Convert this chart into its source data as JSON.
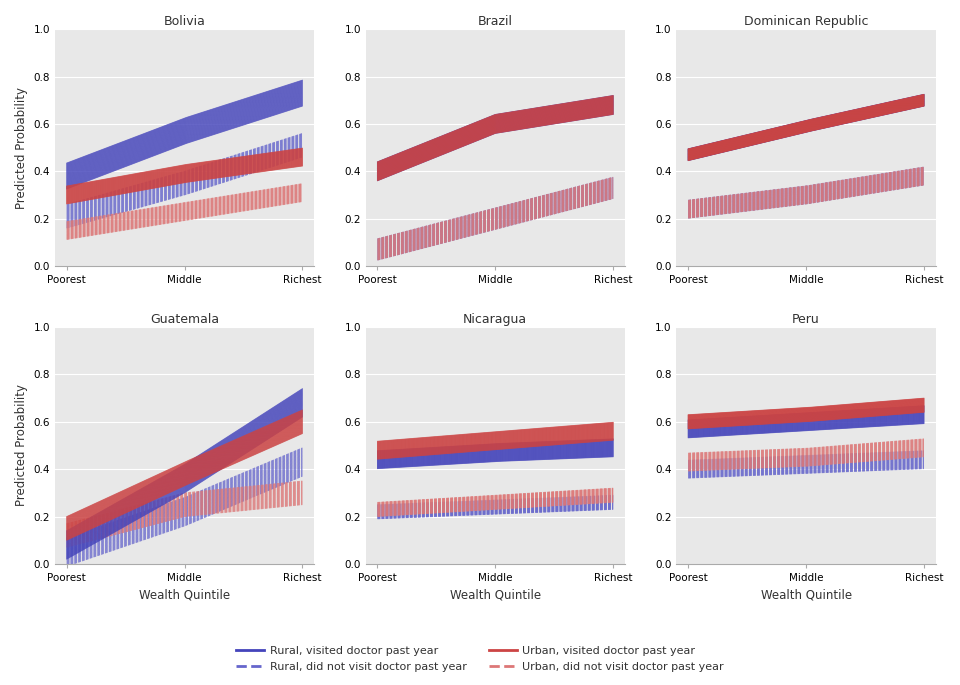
{
  "countries": [
    "Bolivia",
    "Brazil",
    "Dominican Republic",
    "Guatemala",
    "Nicaragua",
    "Peru"
  ],
  "x_ticks": [
    "Poorest",
    "Middle",
    "Richest"
  ],
  "y_ticks": [
    0.0,
    0.2,
    0.4,
    0.6,
    0.8,
    1.0
  ],
  "ylabel": "Predicted Probability",
  "xlabel": "Wealth Quintile",
  "blue_solid": "#4444bb",
  "red_solid": "#cc4444",
  "blue_dashed": "#6666cc",
  "red_dashed": "#dd7777",
  "curves": {
    "Bolivia": {
      "rural_visited": {
        "y": [
          0.38,
          0.57,
          0.73
        ],
        "ci": 0.055
      },
      "rural_not_visited": {
        "y": [
          0.21,
          0.35,
          0.51
        ],
        "ci": 0.05
      },
      "urban_visited": {
        "y": [
          0.3,
          0.39,
          0.46
        ],
        "ci": 0.038
      },
      "urban_not_visited": {
        "y": [
          0.15,
          0.23,
          0.31
        ],
        "ci": 0.038
      }
    },
    "Brazil": {
      "rural_visited": {
        "y": [
          0.4,
          0.6,
          0.68
        ],
        "ci": 0.04
      },
      "rural_not_visited": {
        "y": [
          0.07,
          0.2,
          0.33
        ],
        "ci": 0.045
      },
      "urban_visited": {
        "y": [
          0.4,
          0.6,
          0.68
        ],
        "ci": 0.04
      },
      "urban_not_visited": {
        "y": [
          0.07,
          0.2,
          0.33
        ],
        "ci": 0.045
      }
    },
    "Dominican Republic": {
      "rural_visited": {
        "y": [
          0.47,
          0.59,
          0.7
        ],
        "ci": 0.025
      },
      "rural_not_visited": {
        "y": [
          0.24,
          0.3,
          0.38
        ],
        "ci": 0.038
      },
      "urban_visited": {
        "y": [
          0.47,
          0.59,
          0.7
        ],
        "ci": 0.025
      },
      "urban_not_visited": {
        "y": [
          0.24,
          0.3,
          0.38
        ],
        "ci": 0.038
      }
    },
    "Guatemala": {
      "rural_visited": {
        "y": [
          0.08,
          0.36,
          0.68
        ],
        "ci": 0.06
      },
      "rural_not_visited": {
        "y": [
          0.05,
          0.22,
          0.43
        ],
        "ci": 0.06
      },
      "urban_visited": {
        "y": [
          0.15,
          0.38,
          0.6
        ],
        "ci": 0.05
      },
      "urban_not_visited": {
        "y": [
          0.12,
          0.25,
          0.3
        ],
        "ci": 0.05
      }
    },
    "Nicaragua": {
      "rural_visited": {
        "y": [
          0.44,
          0.47,
          0.49
        ],
        "ci": 0.038
      },
      "rural_not_visited": {
        "y": [
          0.22,
          0.24,
          0.26
        ],
        "ci": 0.03
      },
      "urban_visited": {
        "y": [
          0.48,
          0.52,
          0.56
        ],
        "ci": 0.038
      },
      "urban_not_visited": {
        "y": [
          0.23,
          0.26,
          0.29
        ],
        "ci": 0.03
      }
    },
    "Peru": {
      "rural_visited": {
        "y": [
          0.57,
          0.6,
          0.63
        ],
        "ci": 0.038
      },
      "rural_not_visited": {
        "y": [
          0.4,
          0.42,
          0.44
        ],
        "ci": 0.038
      },
      "urban_visited": {
        "y": [
          0.6,
          0.63,
          0.67
        ],
        "ci": 0.03
      },
      "urban_not_visited": {
        "y": [
          0.43,
          0.45,
          0.49
        ],
        "ci": 0.038
      }
    }
  }
}
